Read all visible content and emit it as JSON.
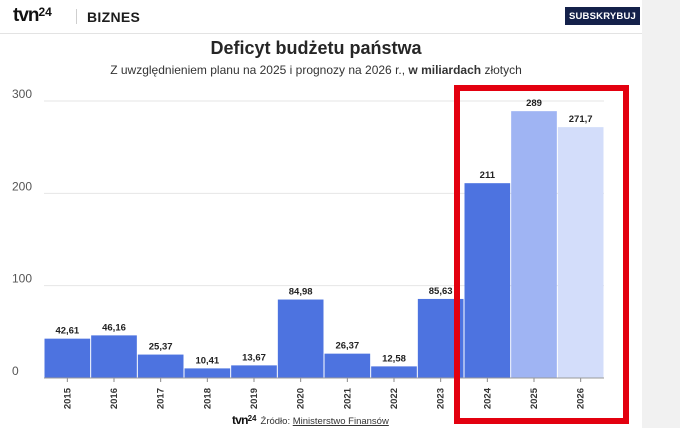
{
  "header": {
    "logo": "tvn24",
    "section": "BIZNES",
    "subscribe_label": "SUBSKRYBUJ"
  },
  "chart_data": {
    "type": "bar",
    "title": "Deficyt budżetu państwa",
    "subtitle_before": "Z uwzględnieniem planu na 2025 i prognozy na 2026 r., ",
    "subtitle_bold": "w miliardach",
    "subtitle_after": " złotych",
    "categories": [
      "2015",
      "2016",
      "2017",
      "2018",
      "2019",
      "2020",
      "2021",
      "2022",
      "2023",
      "2024",
      "2025",
      "2026"
    ],
    "values": [
      42.61,
      46.16,
      25.37,
      10.41,
      13.67,
      84.98,
      26.37,
      12.58,
      85.63,
      211,
      289,
      271.7
    ],
    "value_labels": [
      "42,61",
      "46,16",
      "25,37",
      "10,41",
      "13,67",
      "84,98",
      "26,37",
      "12,58",
      "85,63",
      "211",
      "289",
      "271,7"
    ],
    "colors": [
      "#4d73e0",
      "#4d73e0",
      "#4d73e0",
      "#4d73e0",
      "#4d73e0",
      "#4d73e0",
      "#4d73e0",
      "#4d73e0",
      "#4d73e0",
      "#4d73e0",
      "#9fb4f3",
      "#d3ddfa"
    ],
    "yticks": [
      "0",
      "100",
      "200",
      "300"
    ],
    "ylim": [
      0,
      300
    ],
    "grid": true,
    "highlight_color": "#e3000f",
    "highlight_categories": [
      "2024",
      "2025",
      "2026"
    ]
  },
  "footer": {
    "logo": "tvn24",
    "source_label": "Źródło: ",
    "source_name": "Ministerstwo Finansów"
  }
}
